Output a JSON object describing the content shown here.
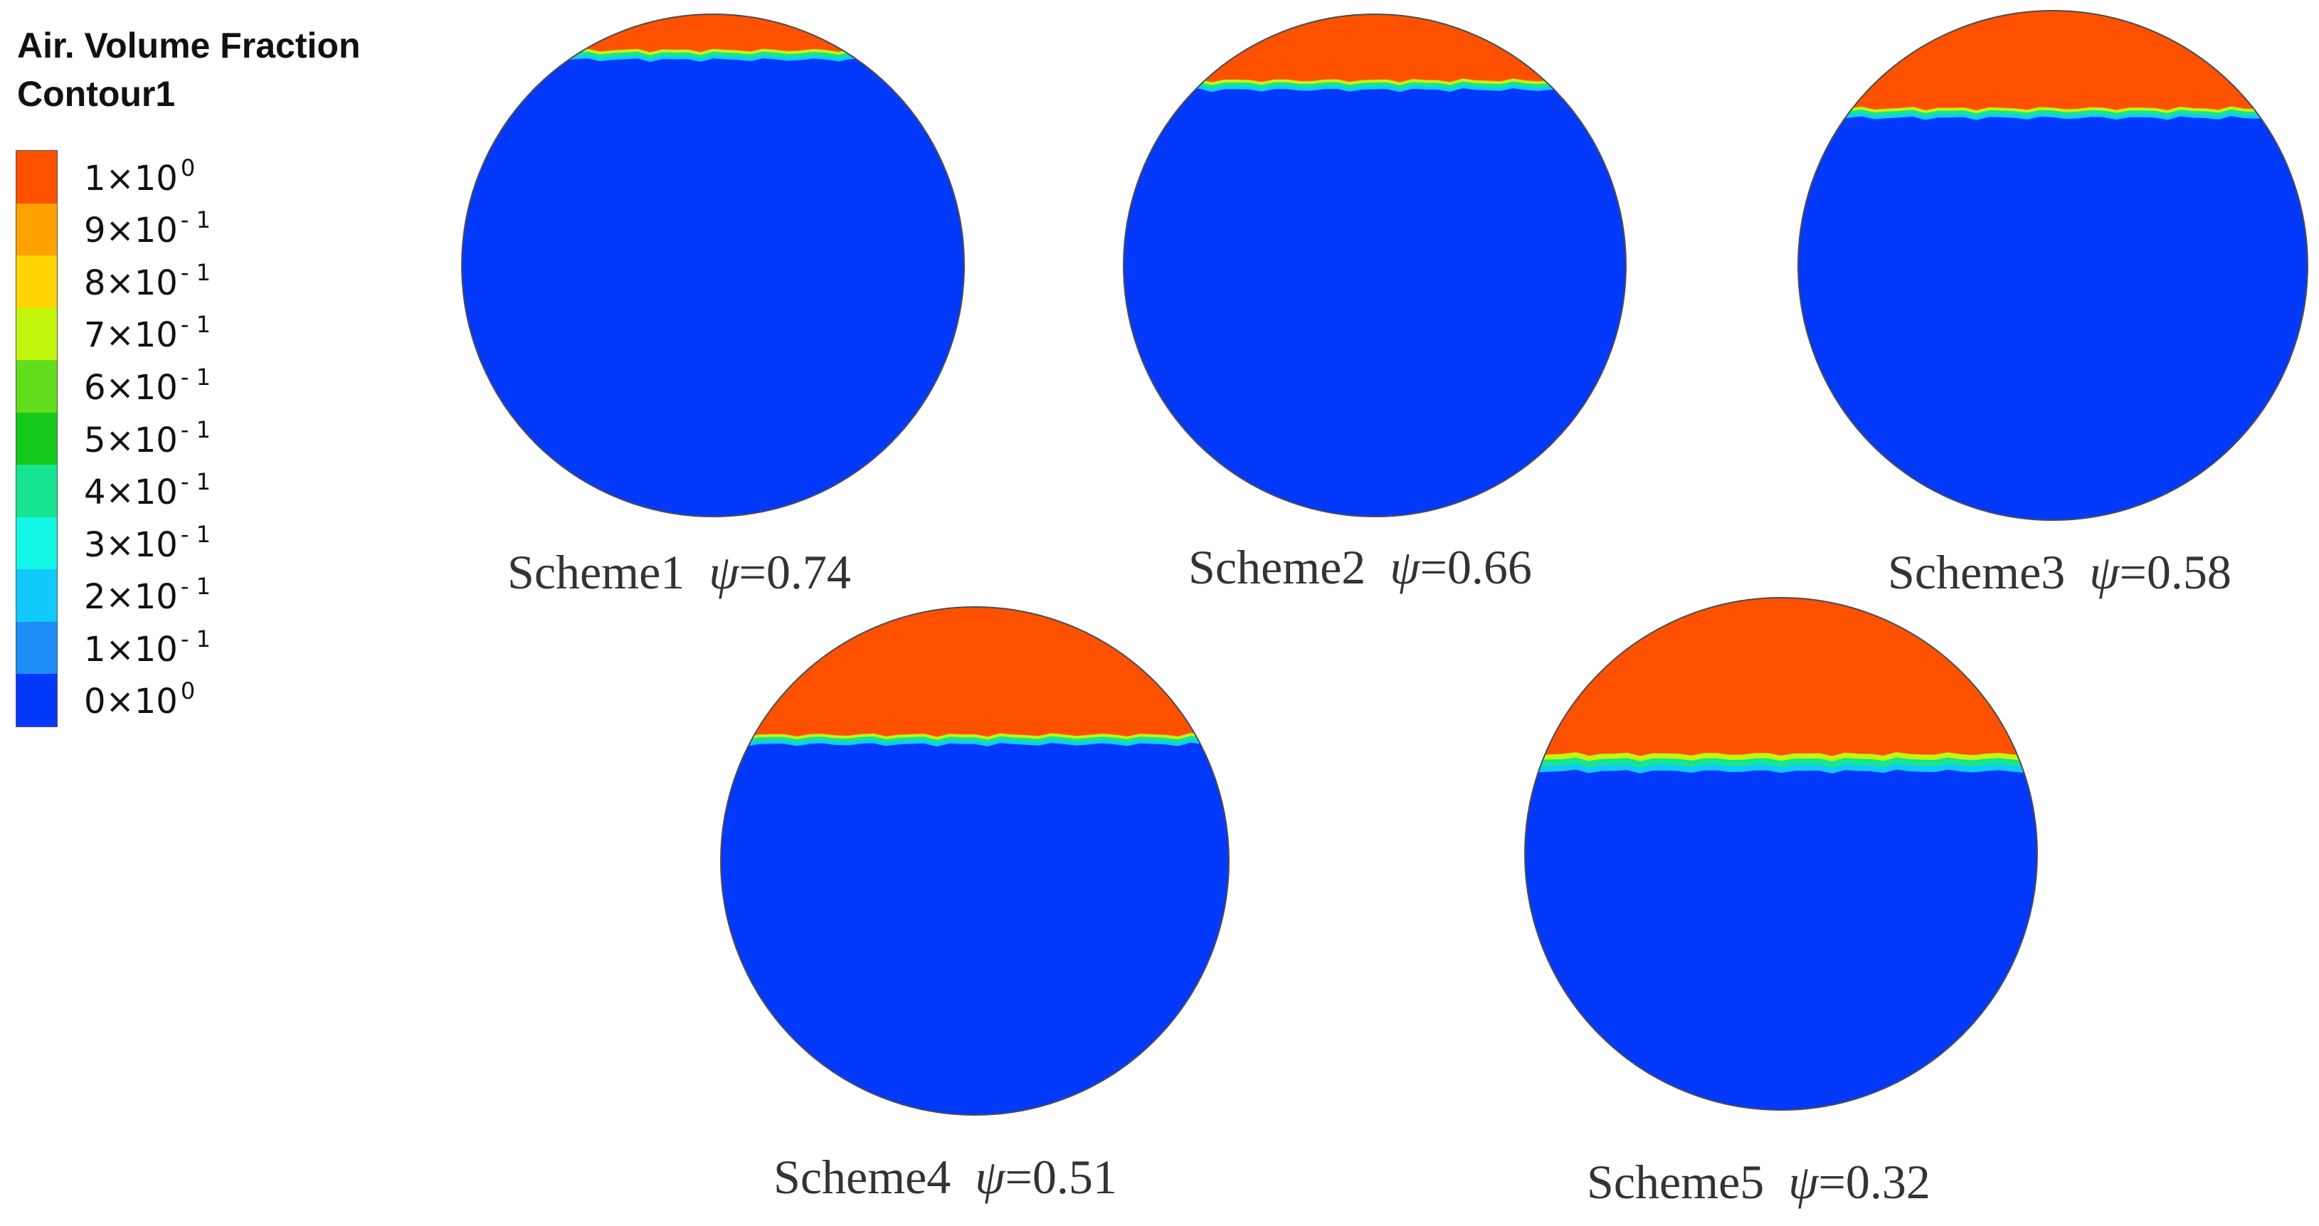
{
  "legend": {
    "title_line1": "Air. Volume Fraction",
    "title_line2": "Contour1",
    "levels": [
      {
        "mantissa": "1",
        "exponent": "0",
        "color": "#fe5100"
      },
      {
        "mantissa": "9",
        "exponent": "- 1",
        "color": "#ffa200"
      },
      {
        "mantissa": "8",
        "exponent": "- 1",
        "color": "#ffd400"
      },
      {
        "mantissa": "7",
        "exponent": "- 1",
        "color": "#c2f60d"
      },
      {
        "mantissa": "6",
        "exponent": "- 1",
        "color": "#62de1c"
      },
      {
        "mantissa": "5",
        "exponent": "- 1",
        "color": "#15c91a"
      },
      {
        "mantissa": "4",
        "exponent": "- 1",
        "color": "#17e591"
      },
      {
        "mantissa": "3",
        "exponent": "- 1",
        "color": "#12f6e6"
      },
      {
        "mantissa": "2",
        "exponent": "- 1",
        "color": "#12c9fb"
      },
      {
        "mantissa": "1",
        "exponent": "- 1",
        "color": "#1c8cf7"
      },
      {
        "mantissa": "0",
        "exponent": "0",
        "color": "#0339fb"
      }
    ],
    "times_symbol": "×10"
  },
  "colors": {
    "air": "#fe5100",
    "water": "#0339fb",
    "interface_mid": "#17e591",
    "interface_low": "#12c9fb",
    "interface_high": "#c2f60d",
    "circle_edge": "#4d4d4d"
  },
  "schemes": [
    {
      "label": "Scheme1",
      "psi_symbol": "ψ",
      "psi_value": "=0.74",
      "air_fraction": 0.08
    },
    {
      "label": "Scheme2",
      "psi_symbol": "ψ",
      "psi_value": "=0.66",
      "air_fraction": 0.14
    },
    {
      "label": "Scheme3",
      "psi_symbol": "ψ",
      "psi_value": "=0.58",
      "air_fraction": 0.2
    },
    {
      "label": "Scheme4",
      "psi_symbol": "ψ",
      "psi_value": "=0.51",
      "air_fraction": 0.26
    },
    {
      "label": "Scheme5",
      "psi_symbol": "ψ",
      "psi_value": "=0.32",
      "air_fraction": 0.32
    }
  ]
}
